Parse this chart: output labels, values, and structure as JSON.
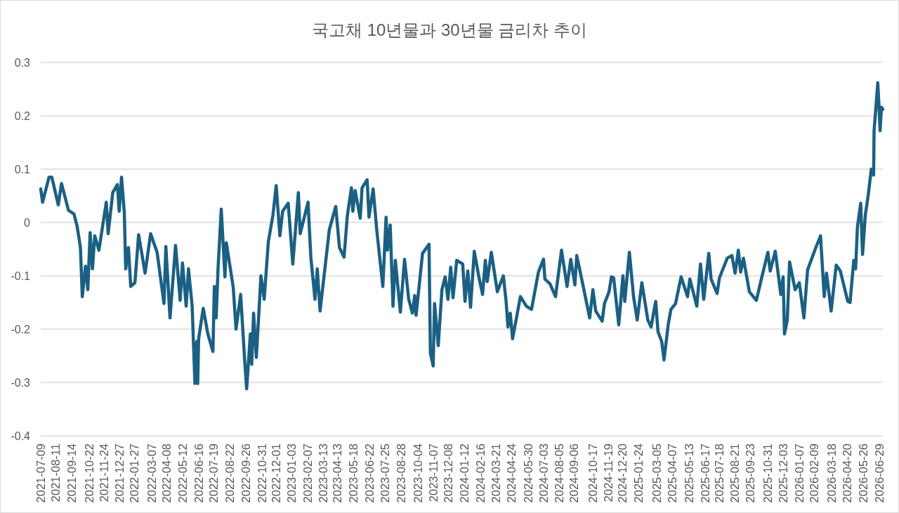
{
  "chart_data": {
    "type": "line",
    "title": "국고채 10년물과 30년물 금리차 추이",
    "color": "#1b6083",
    "line_style": "solid",
    "grid": "y",
    "ylim": [
      -0.4,
      0.3
    ],
    "yticks": [
      -0.4,
      -0.3,
      -0.2,
      -0.1,
      0,
      0.1,
      0.2,
      0.3
    ],
    "xlim": [
      "2021-07-09",
      "2026-07-07"
    ],
    "xticks": [
      "2021-07-09",
      "2021-08-11",
      "2021-09-14",
      "2021-10-22",
      "2021-11-24",
      "2021-12-27",
      "2022-01-27",
      "2022-03-07",
      "2022-04-08",
      "2022-05-12",
      "2022-06-16",
      "2022-07-19",
      "2022-08-22",
      "2022-09-26",
      "2022-10-31",
      "2022-12-01",
      "2023-01-03",
      "2023-02-07",
      "2023-03-13",
      "2023-04-13",
      "2023-05-18",
      "2023-06-22",
      "2023-07-25",
      "2023-08-28",
      "2023-10-04",
      "2023-11-07",
      "2023-12-08",
      "2024-01-12",
      "2024-02-16",
      "2024-03-21",
      "2024-04-24",
      "2024-05-30",
      "2024-07-03",
      "2024-08-05",
      "2024-09-06",
      "2024-10-17",
      "2024-11-19",
      "2024-12-20",
      "2025-01-24",
      "2025-03-05",
      "2025-04-07",
      "2025-05-13",
      "2025-06-17",
      "2025-07-18",
      "2025-08-21",
      "2025-09-23",
      "2025-10-31",
      "2025-12-03",
      "2026-01-07",
      "2026-02-09",
      "2026-03-18",
      "2026-04-20",
      "2026-05-26",
      "2026-06-29"
    ],
    "x": [
      "2021-07-09",
      "2021-07-13",
      "2021-07-27",
      "2021-08-02",
      "2021-08-16",
      "2021-08-23",
      "2021-09-07",
      "2021-09-19",
      "2021-09-26",
      "2021-10-03",
      "2021-10-07",
      "2021-10-14",
      "2021-10-19",
      "2021-10-24",
      "2021-10-29",
      "2021-11-03",
      "2021-11-12",
      "2021-11-28",
      "2021-12-02",
      "2021-12-12",
      "2021-12-22",
      "2021-12-26",
      "2021-12-31",
      "2022-01-06",
      "2022-01-09",
      "2022-01-15",
      "2022-01-20",
      "2022-01-29",
      "2022-02-06",
      "2022-02-20",
      "2022-03-04",
      "2022-03-18",
      "2022-04-02",
      "2022-04-06",
      "2022-04-15",
      "2022-04-27",
      "2022-05-07",
      "2022-05-12",
      "2022-05-20",
      "2022-05-25",
      "2022-06-02",
      "2022-06-08",
      "2022-06-12",
      "2022-06-14",
      "2022-06-16",
      "2022-06-26",
      "2022-07-06",
      "2022-07-17",
      "2022-07-20",
      "2022-07-24",
      "2022-07-28",
      "2022-08-04",
      "2022-08-12",
      "2022-08-15",
      "2022-08-30",
      "2022-09-05",
      "2022-09-15",
      "2022-09-24",
      "2022-09-28",
      "2022-10-06",
      "2022-10-09",
      "2022-10-13",
      "2022-10-19",
      "2022-10-29",
      "2022-11-05",
      "2022-11-14",
      "2022-11-24",
      "2022-12-01",
      "2022-12-09",
      "2022-12-15",
      "2022-12-27",
      "2023-01-06",
      "2023-01-18",
      "2023-01-22",
      "2023-02-08",
      "2023-02-14",
      "2023-02-23",
      "2023-02-28",
      "2023-03-06",
      "2023-03-20",
      "2023-03-26",
      "2023-04-09",
      "2023-04-17",
      "2023-04-27",
      "2023-05-04",
      "2023-05-13",
      "2023-05-16",
      "2023-05-21",
      "2023-06-01",
      "2023-06-05",
      "2023-06-16",
      "2023-06-20",
      "2023-06-29",
      "2023-07-07",
      "2023-07-20",
      "2023-07-27",
      "2023-07-30",
      "2023-08-05",
      "2023-08-11",
      "2023-08-16",
      "2023-08-27",
      "2023-09-05",
      "2023-09-14",
      "2023-09-22",
      "2023-09-27",
      "2023-09-30",
      "2023-10-14",
      "2023-10-28",
      "2023-10-31",
      "2023-11-06",
      "2023-11-09",
      "2023-11-17",
      "2023-11-25",
      "2023-12-02",
      "2023-12-08",
      "2023-12-14",
      "2023-12-19",
      "2023-12-27",
      "2024-01-09",
      "2024-01-14",
      "2024-01-20",
      "2024-01-26",
      "2024-02-03",
      "2024-02-13",
      "2024-02-21",
      "2024-02-27",
      "2024-03-02",
      "2024-03-11",
      "2024-03-24",
      "2024-04-06",
      "2024-04-12",
      "2024-04-16",
      "2024-04-21",
      "2024-04-26",
      "2024-05-13",
      "2024-05-26",
      "2024-06-06",
      "2024-06-21",
      "2024-07-02",
      "2024-07-05",
      "2024-07-16",
      "2024-07-28",
      "2024-08-10",
      "2024-08-22",
      "2024-08-30",
      "2024-09-08",
      "2024-09-12",
      "2024-09-27",
      "2024-10-10",
      "2024-10-17",
      "2024-10-23",
      "2024-11-06",
      "2024-11-11",
      "2024-11-21",
      "2024-11-26",
      "2024-12-01",
      "2024-12-12",
      "2024-12-21",
      "2024-12-25",
      "2025-01-04",
      "2025-01-13",
      "2025-01-21",
      "2025-01-31",
      "2025-02-13",
      "2025-02-20",
      "2025-03-02",
      "2025-03-07",
      "2025-03-15",
      "2025-03-20",
      "2025-03-29",
      "2025-04-04",
      "2025-04-14",
      "2025-04-26",
      "2025-05-10",
      "2025-05-15",
      "2025-05-30",
      "2025-06-07",
      "2025-06-14",
      "2025-06-25",
      "2025-06-30",
      "2025-07-13",
      "2025-07-18",
      "2025-08-04",
      "2025-08-14",
      "2025-08-21",
      "2025-08-28",
      "2025-09-02",
      "2025-09-08",
      "2025-09-21",
      "2025-10-06",
      "2025-10-18",
      "2025-10-31",
      "2025-11-05",
      "2025-11-16",
      "2025-11-28",
      "2025-12-03",
      "2025-12-06",
      "2025-12-12",
      "2025-12-17",
      "2025-12-29",
      "2026-01-07",
      "2026-01-17",
      "2026-01-25",
      "2026-02-11",
      "2026-02-22",
      "2026-03-02",
      "2026-03-07",
      "2026-03-17",
      "2026-03-28",
      "2026-04-06",
      "2026-04-22",
      "2026-04-27",
      "2026-05-05",
      "2026-05-09",
      "2026-05-13",
      "2026-05-20",
      "2026-05-24",
      "2026-05-30",
      "2026-06-05",
      "2026-06-12",
      "2026-06-17",
      "2026-06-18",
      "2026-06-22",
      "2026-06-26",
      "2026-06-29",
      "2026-07-01",
      "2026-07-04",
      "2026-07-07"
    ],
    "values": [
      0.063,
      0.038,
      0.085,
      0.085,
      0.033,
      0.073,
      0.023,
      0.016,
      -0.008,
      -0.047,
      -0.139,
      -0.082,
      -0.126,
      -0.019,
      -0.087,
      -0.025,
      -0.052,
      0.038,
      -0.021,
      0.056,
      0.071,
      0.021,
      0.085,
      0.019,
      -0.087,
      -0.047,
      -0.12,
      -0.113,
      -0.023,
      -0.095,
      -0.021,
      -0.056,
      -0.152,
      -0.045,
      -0.179,
      -0.043,
      -0.146,
      -0.076,
      -0.157,
      -0.087,
      -0.157,
      -0.302,
      -0.223,
      -0.302,
      -0.218,
      -0.161,
      -0.209,
      -0.242,
      -0.12,
      -0.179,
      -0.087,
      0.025,
      -0.102,
      -0.038,
      -0.122,
      -0.2,
      -0.135,
      -0.262,
      -0.312,
      -0.209,
      -0.266,
      -0.17,
      -0.253,
      -0.1,
      -0.144,
      -0.036,
      0.014,
      0.069,
      -0.025,
      0.021,
      0.036,
      -0.078,
      0.056,
      -0.021,
      0.038,
      -0.065,
      -0.144,
      -0.087,
      -0.166,
      -0.06,
      -0.014,
      0.03,
      -0.047,
      -0.065,
      0.012,
      0.065,
      0.021,
      0.06,
      0.008,
      0.065,
      0.08,
      0.01,
      0.063,
      -0.016,
      -0.12,
      0.01,
      -0.052,
      -0.005,
      -0.157,
      -0.071,
      -0.168,
      -0.069,
      -0.144,
      -0.17,
      -0.137,
      -0.174,
      -0.058,
      -0.041,
      -0.245,
      -0.269,
      -0.152,
      -0.231,
      -0.126,
      -0.102,
      -0.144,
      -0.084,
      -0.141,
      -0.071,
      -0.078,
      -0.148,
      -0.091,
      -0.159,
      -0.054,
      -0.102,
      -0.135,
      -0.071,
      -0.111,
      -0.056,
      -0.13,
      -0.1,
      -0.148,
      -0.196,
      -0.17,
      -0.218,
      -0.139,
      -0.157,
      -0.163,
      -0.093,
      -0.069,
      -0.106,
      -0.115,
      -0.139,
      -0.052,
      -0.12,
      -0.069,
      -0.117,
      -0.062,
      -0.124,
      -0.179,
      -0.126,
      -0.166,
      -0.185,
      -0.152,
      -0.13,
      -0.102,
      -0.104,
      -0.192,
      -0.1,
      -0.148,
      -0.056,
      -0.139,
      -0.183,
      -0.113,
      -0.183,
      -0.196,
      -0.148,
      -0.205,
      -0.223,
      -0.258,
      -0.192,
      -0.163,
      -0.152,
      -0.102,
      -0.139,
      -0.106,
      -0.157,
      -0.078,
      -0.144,
      -0.058,
      -0.106,
      -0.133,
      -0.104,
      -0.067,
      -0.062,
      -0.095,
      -0.052,
      -0.093,
      -0.067,
      -0.13,
      -0.146,
      -0.102,
      -0.056,
      -0.091,
      -0.054,
      -0.135,
      -0.102,
      -0.209,
      -0.183,
      -0.074,
      -0.126,
      -0.113,
      -0.179,
      -0.089,
      -0.049,
      -0.025,
      -0.139,
      -0.095,
      -0.166,
      -0.08,
      -0.091,
      -0.148,
      -0.15,
      -0.071,
      -0.087,
      -0.008,
      0.036,
      -0.06,
      0.014,
      0.049,
      0.1,
      0.089,
      0.172,
      0.216,
      0.262,
      0.212,
      0.172,
      0.216,
      0.212
    ]
  }
}
